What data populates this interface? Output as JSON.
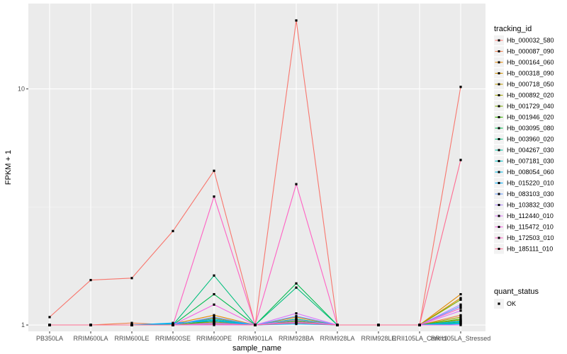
{
  "chart_data": {
    "type": "line",
    "xlabel": "sample_name",
    "ylabel": "FPKM + 1",
    "y_scale": "log10",
    "ylim": [
      0.94,
      23
    ],
    "y_ticks": [
      {
        "value": 1,
        "label": "1"
      },
      {
        "value": 10,
        "label": "10"
      }
    ],
    "grid": true,
    "legend_position": "right",
    "categories": [
      "PB350LA",
      "RRIM600LA",
      "RRIM600LE",
      "RRIM600SE",
      "RRIM600PE",
      "RRIM901LA",
      "RRIM928BA",
      "RRIM928LA",
      "RRIM928LE",
      "RRII105LA_Control",
      "RRII105LA_Stressed"
    ],
    "legend_title": "tracking_id",
    "series": [
      {
        "name": "Hb_000032_580",
        "color": "#F8766D",
        "values": [
          1.08,
          1.55,
          1.58,
          2.5,
          4.5,
          1.0,
          19.5,
          1.0,
          1.0,
          1.0,
          10.2
        ]
      },
      {
        "name": "Hb_000087_090",
        "color": "#EF7F49",
        "values": [
          1.0,
          1.0,
          1.02,
          1.0,
          1.04,
          1.0,
          1.05,
          1.0,
          1.0,
          1.0,
          1.1
        ]
      },
      {
        "name": "Hb_000164_060",
        "color": "#E38900",
        "values": [
          1.0,
          1.0,
          1.0,
          1.01,
          1.1,
          1.0,
          1.08,
          1.0,
          1.0,
          1.0,
          1.35
        ]
      },
      {
        "name": "Hb_000318_090",
        "color": "#D39200",
        "values": [
          1.0,
          1.0,
          1.0,
          1.0,
          1.07,
          1.0,
          1.06,
          1.0,
          1.0,
          1.0,
          1.3
        ]
      },
      {
        "name": "Hb_000718_050",
        "color": "#C09B00",
        "values": [
          1.0,
          1.0,
          1.0,
          1.0,
          1.02,
          1.0,
          1.03,
          1.0,
          1.0,
          1.0,
          1.05
        ]
      },
      {
        "name": "Hb_000892_020",
        "color": "#A3A500",
        "values": [
          1.0,
          1.0,
          1.0,
          1.0,
          1.03,
          1.0,
          1.02,
          1.0,
          1.0,
          1.0,
          1.08
        ]
      },
      {
        "name": "Hb_001729_040",
        "color": "#7CAE00",
        "values": [
          1.0,
          1.0,
          1.0,
          1.0,
          1.01,
          1.0,
          1.02,
          1.0,
          1.0,
          1.0,
          1.28
        ]
      },
      {
        "name": "Hb_001946_020",
        "color": "#39B600",
        "values": [
          1.0,
          1.0,
          1.0,
          1.0,
          1.04,
          1.0,
          1.04,
          1.0,
          1.0,
          1.0,
          1.06
        ]
      },
      {
        "name": "Hb_003095_080",
        "color": "#00BB4E",
        "values": [
          1.0,
          1.0,
          1.0,
          1.0,
          1.35,
          1.0,
          1.5,
          1.0,
          1.0,
          1.0,
          1.02
        ]
      },
      {
        "name": "Hb_003960_020",
        "color": "#00BF7D",
        "values": [
          1.0,
          1.0,
          1.0,
          1.0,
          1.62,
          1.0,
          1.44,
          1.0,
          1.0,
          1.0,
          1.03
        ]
      },
      {
        "name": "Hb_004267_030",
        "color": "#00C1A3",
        "values": [
          1.0,
          1.0,
          1.0,
          1.01,
          1.05,
          1.0,
          1.06,
          1.0,
          1.0,
          1.0,
          1.04
        ]
      },
      {
        "name": "Hb_007181_030",
        "color": "#00BFC4",
        "values": [
          1.0,
          1.0,
          1.0,
          1.0,
          1.02,
          1.0,
          1.03,
          1.0,
          1.0,
          1.0,
          1.02
        ]
      },
      {
        "name": "Hb_008054_060",
        "color": "#00B9E3",
        "values": [
          1.0,
          1.0,
          1.0,
          1.01,
          1.06,
          1.0,
          1.02,
          1.0,
          1.0,
          1.0,
          1.04
        ]
      },
      {
        "name": "Hb_015220_010",
        "color": "#00ADFA",
        "values": [
          1.0,
          1.0,
          1.0,
          1.02,
          1.04,
          1.0,
          1.01,
          1.0,
          1.0,
          1.0,
          1.01
        ]
      },
      {
        "name": "Hb_083103_030",
        "color": "#619CFF",
        "values": [
          1.0,
          1.0,
          1.0,
          1.0,
          1.08,
          1.0,
          1.09,
          1.0,
          1.0,
          1.0,
          1.2
        ]
      },
      {
        "name": "Hb_103832_030",
        "color": "#AE87FF",
        "values": [
          1.0,
          1.0,
          1.0,
          1.0,
          1.02,
          1.0,
          1.05,
          1.0,
          1.0,
          1.0,
          1.22
        ]
      },
      {
        "name": "Hb_112440_010",
        "color": "#DB72FB",
        "values": [
          1.0,
          1.0,
          1.0,
          1.0,
          1.0,
          1.0,
          1.12,
          1.0,
          1.0,
          1.0,
          1.15
        ]
      },
      {
        "name": "Hb_115472_010",
        "color": "#F564E3",
        "values": [
          1.0,
          1.0,
          1.0,
          1.0,
          1.22,
          1.0,
          1.03,
          1.0,
          1.0,
          1.0,
          1.0
        ]
      },
      {
        "name": "Hb_172503_010",
        "color": "#FF61C3",
        "values": [
          1.0,
          1.0,
          1.0,
          1.0,
          3.5,
          1.0,
          3.95,
          1.0,
          1.0,
          1.0,
          1.18
        ]
      },
      {
        "name": "Hb_185111_010",
        "color": "#FF6C91",
        "values": [
          1.0,
          1.0,
          1.0,
          1.0,
          1.01,
          1.0,
          1.02,
          1.0,
          1.0,
          1.0,
          5.0
        ]
      }
    ],
    "point_legend": {
      "title": "quant_status",
      "label": "OK"
    }
  }
}
